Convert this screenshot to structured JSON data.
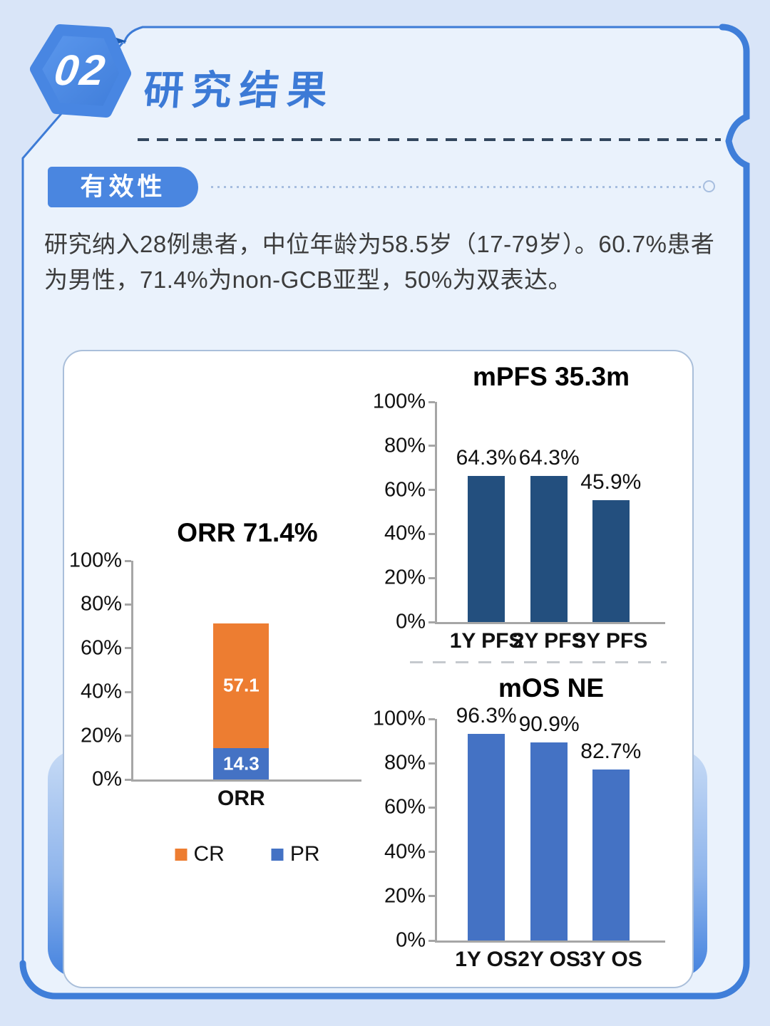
{
  "page": {
    "section_number": "02",
    "section_title": "研究结果",
    "tab_label": "有效性",
    "intro_lines": [
      "研究纳入28例患者，中位年龄为58.5岁（17-79岁）。60.7%患者",
      "为男性，71.4%为non-GCB亚型，50%为双表达。"
    ]
  },
  "colors": {
    "page_bg": "#d9e5f8",
    "panel_bg": "#eaf2fc",
    "accent_blue": "#4a86e0",
    "border_blue": "#3d7bd6",
    "dark_swoosh": "#1c5aae",
    "title_blue": "#3c7ad6",
    "navy_bar": "#234F7E",
    "blue_bar": "#4472C4",
    "orange_bar": "#ED7D31",
    "axis_gray": "#a6a6a6"
  },
  "chart_data": [
    {
      "id": "orr",
      "type": "bar",
      "stacked": true,
      "title": "ORR 71.4%",
      "categories": [
        "ORR"
      ],
      "series": [
        {
          "name": "PR",
          "values": [
            14.3
          ],
          "color": "#4472C4",
          "segment_label": "14.3"
        },
        {
          "name": "CR",
          "values": [
            57.1
          ],
          "color": "#ED7D31",
          "segment_label": "57.1"
        }
      ],
      "legend": [
        {
          "name": "CR",
          "color": "#ED7D31"
        },
        {
          "name": "PR",
          "color": "#4472C4"
        }
      ],
      "legend_position": "bottom",
      "yticks": [
        "100%",
        "80%",
        "60%",
        "40%",
        "20%",
        "0%"
      ],
      "ylim": [
        0,
        100
      ],
      "grid": false
    },
    {
      "id": "pfs",
      "type": "bar",
      "title": "mPFS 35.3m",
      "categories": [
        "1Y PFS",
        "2Y PFS",
        "3Y PFS"
      ],
      "values": [
        64.3,
        64.3,
        45.9
      ],
      "value_labels": [
        "64.3%",
        "64.3%",
        "45.9%"
      ],
      "drawn_pct": [
        66.3,
        66.3,
        55.3
      ],
      "bar_color": "#234F7E",
      "yticks": [
        "100%",
        "80%",
        "60%",
        "40%",
        "20%",
        "0%"
      ],
      "ylim": [
        0,
        100
      ],
      "grid": false
    },
    {
      "id": "os",
      "type": "bar",
      "title": "mOS NE",
      "categories": [
        "1Y OS",
        "2Y OS",
        "3Y OS"
      ],
      "values": [
        96.3,
        90.9,
        82.7
      ],
      "value_labels": [
        "96.3%",
        "90.9%",
        "82.7%"
      ],
      "drawn_pct": [
        93.2,
        89.4,
        77.2
      ],
      "bar_color": "#4472C4",
      "yticks": [
        "100%",
        "80%",
        "60%",
        "40%",
        "20%",
        "0%"
      ],
      "ylim": [
        0,
        100
      ],
      "grid": false
    }
  ]
}
